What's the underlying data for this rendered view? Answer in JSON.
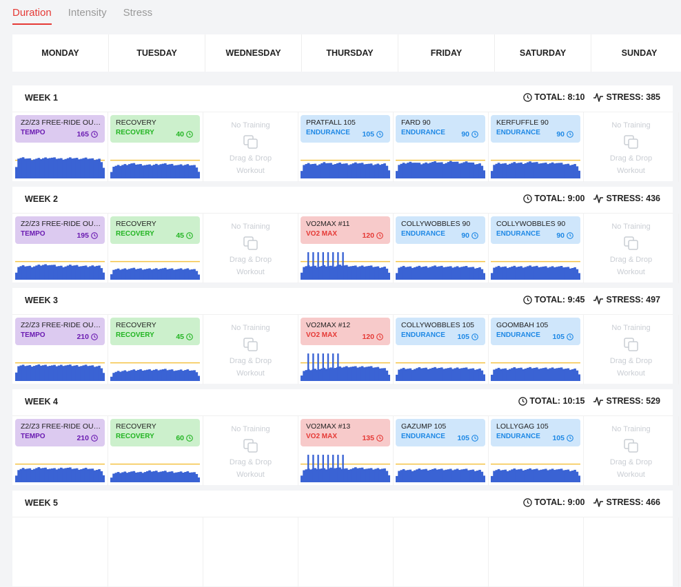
{
  "tabs": [
    {
      "label": "Duration",
      "active": true
    },
    {
      "label": "Intensity",
      "active": false
    },
    {
      "label": "Stress",
      "active": false
    }
  ],
  "days": [
    "MONDAY",
    "TUESDAY",
    "WEDNESDAY",
    "THURSDAY",
    "FRIDAY",
    "SATURDAY",
    "SUNDAY"
  ],
  "empty_cell": {
    "line1": "No Training",
    "line2": "Drag & Drop",
    "line3": "Workout"
  },
  "colors": {
    "tempo_bg": "#dccaf0",
    "tempo_fg": "#6a1bb1",
    "recovery_bg": "#ccf0cc",
    "recovery_fg": "#22b422",
    "endurance_bg": "#cfe6fb",
    "endurance_fg": "#1e88e5",
    "vo2_bg": "#f7caca",
    "vo2_fg": "#e53935",
    "chart_bar": "#3a63d4",
    "chart_line": "#f5c242"
  },
  "weeks": [
    {
      "label": "WEEK 1",
      "total": "TOTAL: 8:10",
      "stress": "STRESS: 385",
      "workouts": [
        {
          "day": 0,
          "name": "Z2/Z3 FREE-RIDE OUT...",
          "type": "TEMPO",
          "dur": "165",
          "kind": "tempo",
          "profile": [
            0.6,
            0.62,
            0.58,
            0.6,
            0.63,
            0.61,
            0.59,
            0.62,
            0.6,
            0.61,
            0.58,
            0.6
          ],
          "line": 0.55
        },
        {
          "day": 1,
          "name": "RECOVERY",
          "type": "RECOVERY",
          "dur": "40",
          "kind": "recovery",
          "profile": [
            0.35,
            0.4,
            0.45,
            0.42,
            0.4,
            0.44,
            0.43,
            0.4,
            0.42,
            0.38
          ],
          "line": 0.55
        },
        {
          "day": 3,
          "name": "PRATFALL 105",
          "type": "ENDURANCE",
          "dur": "105",
          "kind": "endurance",
          "profile": [
            0.4,
            0.45,
            0.42,
            0.48,
            0.44,
            0.46,
            0.43,
            0.47,
            0.45,
            0.42,
            0.44,
            0.46
          ],
          "line": 0.55
        },
        {
          "day": 4,
          "name": "FARD 90",
          "type": "ENDURANCE",
          "dur": "90",
          "kind": "endurance",
          "profile": [
            0.4,
            0.46,
            0.5,
            0.44,
            0.48,
            0.5,
            0.46,
            0.52,
            0.47,
            0.5,
            0.44,
            0.46
          ],
          "line": 0.55
        },
        {
          "day": 5,
          "name": "KERFUFFLE 90",
          "type": "ENDURANCE",
          "dur": "90",
          "kind": "endurance",
          "profile": [
            0.4,
            0.46,
            0.44,
            0.48,
            0.46,
            0.5,
            0.47,
            0.45,
            0.48,
            0.44,
            0.42,
            0.44
          ],
          "line": 0.55
        }
      ]
    },
    {
      "label": "WEEK 2",
      "total": "TOTAL: 9:00",
      "stress": "STRESS: 436",
      "workouts": [
        {
          "day": 0,
          "name": "Z2/Z3 FREE-RIDE OUT...",
          "type": "TEMPO",
          "dur": "195",
          "kind": "tempo",
          "profile": [
            0.38,
            0.42,
            0.4,
            0.44,
            0.46,
            0.42,
            0.4,
            0.44,
            0.42,
            0.4,
            0.43,
            0.41
          ],
          "line": 0.55
        },
        {
          "day": 1,
          "name": "RECOVERY",
          "type": "RECOVERY",
          "dur": "45",
          "kind": "recovery",
          "profile": [
            0.3,
            0.32,
            0.34,
            0.33,
            0.32,
            0.34,
            0.33,
            0.32,
            0.33,
            0.3
          ],
          "line": 0.55
        },
        {
          "day": 3,
          "name": "VO2MAX #11",
          "type": "VO2 MAX",
          "dur": "120",
          "kind": "vo2",
          "profile": [
            0.38,
            0.42,
            0.4,
            0.42,
            0.4,
            0.44,
            0.42,
            0.4,
            0.42,
            0.4,
            0.38,
            0.4
          ],
          "spikes": 8,
          "line": 0.55
        },
        {
          "day": 4,
          "name": "COLLYWOBBLES 90",
          "type": "ENDURANCE",
          "dur": "90",
          "kind": "endurance",
          "profile": [
            0.36,
            0.4,
            0.38,
            0.4,
            0.39,
            0.41,
            0.4,
            0.38,
            0.4,
            0.39,
            0.36,
            0.38
          ],
          "line": 0.55
        },
        {
          "day": 5,
          "name": "COLLYWOBBLES 90",
          "type": "ENDURANCE",
          "dur": "90",
          "kind": "endurance",
          "profile": [
            0.36,
            0.4,
            0.38,
            0.4,
            0.39,
            0.41,
            0.4,
            0.38,
            0.4,
            0.39,
            0.36,
            0.38
          ],
          "line": 0.55
        }
      ]
    },
    {
      "label": "WEEK 3",
      "total": "TOTAL: 9:45",
      "stress": "STRESS: 497",
      "workouts": [
        {
          "day": 0,
          "name": "Z2/Z3 FREE-RIDE OUT...",
          "type": "TEMPO",
          "dur": "210",
          "kind": "tempo",
          "profile": [
            0.45,
            0.47,
            0.46,
            0.48,
            0.47,
            0.46,
            0.48,
            0.47,
            0.46,
            0.47,
            0.45,
            0.46
          ],
          "line": 0.55
        },
        {
          "day": 1,
          "name": "RECOVERY",
          "type": "RECOVERY",
          "dur": "45",
          "kind": "recovery",
          "profile": [
            0.24,
            0.3,
            0.32,
            0.34,
            0.33,
            0.35,
            0.34,
            0.32,
            0.34,
            0.3
          ],
          "line": 0.55
        },
        {
          "day": 3,
          "name": "VO2MAX #12",
          "type": "VO2 MAX",
          "dur": "120",
          "kind": "vo2",
          "profile": [
            0.3,
            0.34,
            0.36,
            0.38,
            0.4,
            0.42,
            0.44,
            0.42,
            0.44,
            0.42,
            0.4,
            0.36
          ],
          "spikes": 7,
          "line": 0.55
        },
        {
          "day": 4,
          "name": "COLLYWOBBLES 105",
          "type": "ENDURANCE",
          "dur": "105",
          "kind": "endurance",
          "profile": [
            0.34,
            0.38,
            0.36,
            0.4,
            0.38,
            0.4,
            0.39,
            0.38,
            0.4,
            0.38,
            0.36,
            0.38
          ],
          "line": 0.55
        },
        {
          "day": 5,
          "name": "GOOMBAH 105",
          "type": "ENDURANCE",
          "dur": "105",
          "kind": "endurance",
          "profile": [
            0.34,
            0.38,
            0.36,
            0.4,
            0.38,
            0.4,
            0.39,
            0.38,
            0.4,
            0.38,
            0.36,
            0.38
          ],
          "line": 0.55
        }
      ]
    },
    {
      "label": "WEEK 4",
      "total": "TOTAL: 10:15",
      "stress": "STRESS: 529",
      "workouts": [
        {
          "day": 0,
          "name": "Z2/Z3 FREE-RIDE OUT...",
          "type": "TEMPO",
          "dur": "210",
          "kind": "tempo",
          "profile": [
            0.36,
            0.42,
            0.4,
            0.44,
            0.42,
            0.4,
            0.44,
            0.42,
            0.4,
            0.42,
            0.38,
            0.4
          ],
          "line": 0.55
        },
        {
          "day": 1,
          "name": "RECOVERY",
          "type": "RECOVERY",
          "dur": "60",
          "kind": "recovery",
          "profile": [
            0.26,
            0.3,
            0.32,
            0.3,
            0.34,
            0.33,
            0.32,
            0.3,
            0.32,
            0.28
          ],
          "line": 0.55
        },
        {
          "day": 3,
          "name": "VO2MAX #13",
          "type": "VO2 MAX",
          "dur": "135",
          "kind": "vo2",
          "profile": [
            0.36,
            0.4,
            0.42,
            0.4,
            0.44,
            0.42,
            0.4,
            0.44,
            0.42,
            0.4,
            0.42,
            0.4
          ],
          "spikes": 8,
          "line": 0.55
        },
        {
          "day": 4,
          "name": "GAZUMP 105",
          "type": "ENDURANCE",
          "dur": "105",
          "kind": "endurance",
          "profile": [
            0.34,
            0.38,
            0.36,
            0.4,
            0.38,
            0.4,
            0.39,
            0.38,
            0.4,
            0.38,
            0.36,
            0.38
          ],
          "line": 0.55
        },
        {
          "day": 5,
          "name": "LOLLYGAG 105",
          "type": "ENDURANCE",
          "dur": "105",
          "kind": "endurance",
          "profile": [
            0.34,
            0.38,
            0.36,
            0.4,
            0.38,
            0.4,
            0.39,
            0.38,
            0.4,
            0.38,
            0.36,
            0.38
          ],
          "line": 0.55
        }
      ]
    },
    {
      "label": "WEEK 5",
      "total": "TOTAL: 9:00",
      "stress": "STRESS: 466",
      "workouts": []
    }
  ]
}
